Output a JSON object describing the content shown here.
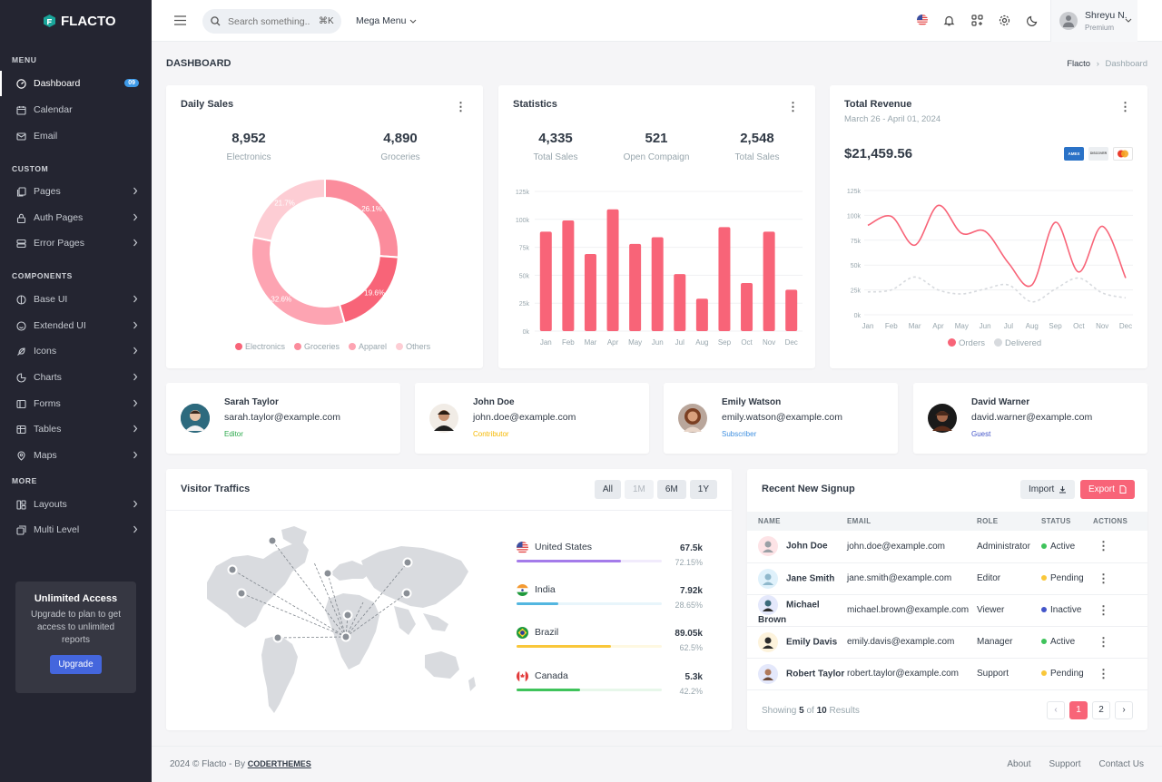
{
  "app": {
    "name": "FLACTO"
  },
  "sidebar": {
    "sections": [
      "MENU",
      "CUSTOM",
      "COMPONENTS",
      "MORE"
    ],
    "items": [
      {
        "label": "Dashboard",
        "badge": "09"
      },
      {
        "label": "Calendar"
      },
      {
        "label": "Email"
      },
      {
        "label": "Pages"
      },
      {
        "label": "Auth Pages"
      },
      {
        "label": "Error Pages"
      },
      {
        "label": "Base UI"
      },
      {
        "label": "Extended UI"
      },
      {
        "label": "Icons"
      },
      {
        "label": "Charts"
      },
      {
        "label": "Forms"
      },
      {
        "label": "Tables"
      },
      {
        "label": "Maps"
      },
      {
        "label": "Layouts"
      },
      {
        "label": "Multi Level"
      }
    ],
    "upgrade": {
      "title": "Unlimited Access",
      "desc": "Upgrade to plan to get access to unlimited reports",
      "button": "Upgrade"
    }
  },
  "topbar": {
    "search_placeholder": "Search something..",
    "shortcut": "⌘K",
    "mega_menu": "Mega Menu",
    "user": {
      "name": "Shreyu N.",
      "plan": "Premium"
    }
  },
  "page": {
    "title": "DASHBOARD",
    "breadcrumb": [
      "Flacto",
      "Dashboard"
    ]
  },
  "daily_sales": {
    "title": "Daily Sales",
    "stats": [
      {
        "value": "8,952",
        "label": "Electronics"
      },
      {
        "value": "4,890",
        "label": "Groceries"
      }
    ]
  },
  "statistics": {
    "title": "Statistics",
    "stats": [
      {
        "value": "4,335",
        "label": "Total Sales"
      },
      {
        "value": "521",
        "label": "Open Compaign"
      },
      {
        "value": "2,548",
        "label": "Total Sales"
      }
    ]
  },
  "revenue": {
    "title": "Total Revenue",
    "range": "March 26 - April 01, 2024",
    "amount": "$21,459.56",
    "cards": [
      "AMEX",
      "DISCOVER",
      "MC"
    ]
  },
  "chart_data": [
    {
      "type": "pie",
      "title": "Daily Sales",
      "categories": [
        "Electronics",
        "Groceries",
        "Apparel",
        "Others"
      ],
      "values": [
        26.1,
        19.6,
        32.6,
        21.7
      ],
      "labels": [
        "26.1%",
        "19.6%",
        "32.6%",
        "21.7%"
      ],
      "colors": [
        "#fb8c9c",
        "#f86478",
        "#fda4b2",
        "#fdcdd4"
      ]
    },
    {
      "type": "bar",
      "title": "Statistics",
      "categories": [
        "Jan",
        "Feb",
        "Mar",
        "Apr",
        "May",
        "Jun",
        "Jul",
        "Aug",
        "Sep",
        "Oct",
        "Nov",
        "Dec"
      ],
      "values": [
        89,
        99,
        69,
        109,
        78,
        84,
        51,
        29,
        93,
        43,
        89,
        37
      ],
      "yticks": [
        "125k",
        "100k",
        "75k",
        "50k",
        "25k",
        "0k"
      ],
      "ylim": [
        0,
        125
      ],
      "color": "#f86478"
    },
    {
      "type": "line",
      "title": "Total Revenue",
      "categories": [
        "Jan",
        "Feb",
        "Mar",
        "Apr",
        "May",
        "Jun",
        "Jul",
        "Aug",
        "Sep",
        "Oct",
        "Nov",
        "Dec"
      ],
      "yticks": [
        "125k",
        "100k",
        "75k",
        "50k",
        "25k",
        "0k"
      ],
      "ylim": [
        0,
        125
      ],
      "series": [
        {
          "name": "Orders",
          "values": [
            90,
            99,
            70,
            110,
            82,
            84,
            52,
            30,
            93,
            43,
            89,
            37
          ],
          "color": "#f86478"
        },
        {
          "name": "Delivered",
          "values": [
            23,
            25,
            38,
            25,
            21,
            26,
            30,
            13,
            26,
            37,
            22,
            17
          ],
          "color": "#d7dade"
        }
      ]
    }
  ],
  "users": [
    {
      "name": "Sarah Taylor",
      "email": "sarah.taylor@example.com",
      "role": "Editor",
      "role_color": "#2aa84a"
    },
    {
      "name": "John Doe",
      "email": "john.doe@example.com",
      "role": "Contributor",
      "role_color": "#f5b800"
    },
    {
      "name": "Emily Watson",
      "email": "emily.watson@example.com",
      "role": "Subscriber",
      "role_color": "#3e8fe0"
    },
    {
      "name": "David Warner",
      "email": "david.warner@example.com",
      "role": "Guest",
      "role_color": "#4355c9"
    }
  ],
  "visitors": {
    "title": "Visitor Traffics",
    "filters": [
      "All",
      "1M",
      "6M",
      "1Y"
    ],
    "countries": [
      {
        "name": "United States",
        "value": "67.5k",
        "pct": "72.15%",
        "fill": 0.72,
        "color": "#a47bea",
        "track": "#f1ebfc"
      },
      {
        "name": "India",
        "value": "7.92k",
        "pct": "28.65%",
        "fill": 0.29,
        "color": "#53b6e0",
        "track": "#e8f5fb"
      },
      {
        "name": "Brazil",
        "value": "89.05k",
        "pct": "62.5%",
        "fill": 0.65,
        "color": "#f9c73a",
        "track": "#fef8e1"
      },
      {
        "name": "Canada",
        "value": "5.3k",
        "pct": "42.2%",
        "fill": 0.44,
        "color": "#3fc35b",
        "track": "#e7f7ea"
      }
    ]
  },
  "signups": {
    "title": "Recent New Signup",
    "import": "Import",
    "export": "Export",
    "columns": [
      "NAME",
      "EMAIL",
      "ROLE",
      "STATUS",
      "ACTIONS"
    ],
    "rows": [
      {
        "name": "John Doe",
        "email": "john.doe@example.com",
        "role": "Administrator",
        "status": "Active",
        "color": "#3fc35b"
      },
      {
        "name": "Jane Smith",
        "email": "jane.smith@example.com",
        "role": "Editor",
        "status": "Pending",
        "color": "#f9c73a"
      },
      {
        "name": "Michael Brown",
        "email": "michael.brown@example.com",
        "role": "Viewer",
        "status": "Inactive",
        "color": "#4355c9"
      },
      {
        "name": "Emily Davis",
        "email": "emily.davis@example.com",
        "role": "Manager",
        "status": "Active",
        "color": "#3fc35b"
      },
      {
        "name": "Robert Taylor",
        "email": "robert.taylor@example.com",
        "role": "Support",
        "status": "Pending",
        "color": "#f9c73a"
      }
    ],
    "showing_prefix": "Showing",
    "showing_count": "5",
    "showing_of": "of",
    "showing_total": "10",
    "showing_suffix": "Results",
    "pages": [
      "‹",
      "1",
      "2",
      "›"
    ]
  },
  "footer": {
    "copyright": "2024 © Flacto - By",
    "brand": "CODERTHEMES",
    "links": [
      "About",
      "Support",
      "Contact Us"
    ]
  }
}
